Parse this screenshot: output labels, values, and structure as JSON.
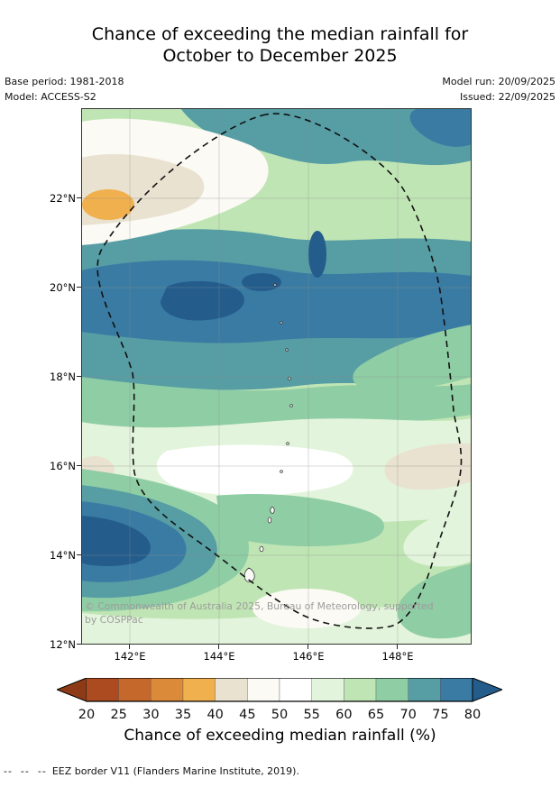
{
  "title": {
    "line1": "Chance of exceeding the median rainfall for",
    "line2": "October to December 2025"
  },
  "meta": {
    "base_period": "Base period: 1981-2018",
    "model": "Model: ACCESS-S2",
    "model_run": "Model run: 20/09/2025",
    "issued": "Issued: 22/09/2025"
  },
  "map": {
    "copyright_line1": "© Commonwealth of Australia 2025, Bureau of Meteorology, supported",
    "copyright_line2": "by COSPPac"
  },
  "footer": {
    "legend_symbol": "--  --  --",
    "text": "EEZ border V11 (Flanders Marine Institute, 2019)."
  },
  "chart_data": {
    "type": "heatmap",
    "subtype": "filled-contour-probability-map",
    "title": "Chance of exceeding the median rainfall for October to December 2025",
    "grid": true,
    "x_axis": {
      "ticks": [
        "142°E",
        "144°E",
        "146°E",
        "148°E"
      ]
    },
    "y_axis": {
      "ticks": [
        "22°N",
        "20°N",
        "18°N",
        "16°N",
        "14°N",
        "12°N"
      ]
    },
    "colorbar": {
      "label": "Chance of exceeding median rainfall (%)",
      "orientation": "horizontal",
      "tick_values": [
        20,
        25,
        30,
        35,
        40,
        45,
        50,
        55,
        60,
        65,
        70,
        75,
        80
      ],
      "under_color": "#8e3a16",
      "segment_colors": [
        "#ad4b20",
        "#c4682c",
        "#da8a38",
        "#f0b04e",
        "#e9e2d0",
        "#fbfaf4",
        "#ffffff",
        "#e3f4dc",
        "#c0e5b4",
        "#8fcda5",
        "#569da4",
        "#3a7ba3"
      ],
      "over_color": "#245d8c"
    },
    "overlays": [
      {
        "name": "EEZ border V11",
        "style": "dashed-black-outline"
      }
    ],
    "notable_features": [
      {
        "location": "around 21.8°N 141.3°E",
        "value_range": "35-40%"
      },
      {
        "location": "band near 19.5-20°N across map",
        "value_range": "75-85%"
      },
      {
        "location": "around 19.7°N 144.3°E core",
        "value_range": ">80%"
      },
      {
        "location": "band near 16-17°N",
        "value_range": "45-55%"
      },
      {
        "location": "around 14.5°N 141.5°E core",
        "value_range": ">80%"
      },
      {
        "location": "southeast corner near 12-13°N 148°E",
        "value_range": "60-70%"
      }
    ]
  }
}
